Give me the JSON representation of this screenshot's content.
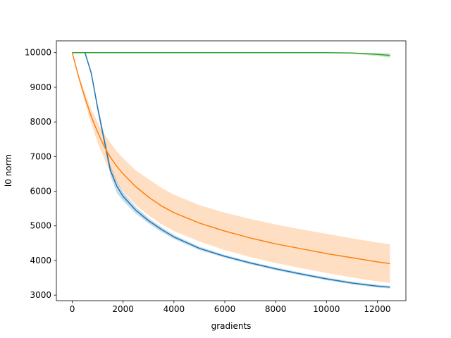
{
  "chart_data": {
    "type": "line",
    "x_label": "gradients",
    "y_label": "l0 norm",
    "x": [
      0,
      250,
      500,
      750,
      1000,
      1250,
      1500,
      1750,
      2000,
      2500,
      3000,
      3500,
      4000,
      5000,
      6000,
      7000,
      8000,
      9000,
      10000,
      11000,
      12000,
      12500
    ],
    "series": [
      {
        "color": "#1f77b4",
        "values": [
          10000,
          10000,
          10000,
          9400,
          8400,
          7500,
          6600,
          6150,
          5850,
          5450,
          5150,
          4900,
          4680,
          4350,
          4120,
          3930,
          3760,
          3610,
          3470,
          3350,
          3260,
          3230
        ],
        "lower": [
          10000,
          10000,
          10000,
          9350,
          8300,
          7350,
          6450,
          5950,
          5720,
          5350,
          5070,
          4830,
          4620,
          4300,
          4080,
          3890,
          3720,
          3570,
          3430,
          3310,
          3220,
          3190
        ],
        "upper": [
          10000,
          10000,
          10000,
          9450,
          8500,
          7650,
          6750,
          6300,
          5980,
          5550,
          5230,
          4970,
          4740,
          4400,
          4160,
          3970,
          3800,
          3650,
          3510,
          3390,
          3300,
          3270
        ]
      },
      {
        "color": "#ff7f0e",
        "values": [
          10000,
          9300,
          8700,
          8150,
          7700,
          7300,
          6980,
          6720,
          6500,
          6130,
          5830,
          5580,
          5380,
          5080,
          4850,
          4650,
          4480,
          4340,
          4200,
          4080,
          3960,
          3910
        ],
        "lower": [
          10000,
          9250,
          8550,
          7950,
          7400,
          6950,
          6550,
          6250,
          6000,
          5600,
          5300,
          5050,
          4850,
          4550,
          4300,
          4100,
          3930,
          3780,
          3640,
          3510,
          3400,
          3350
        ],
        "upper": [
          10000,
          9350,
          8850,
          8350,
          8000,
          7650,
          7400,
          7150,
          6950,
          6600,
          6350,
          6100,
          5900,
          5600,
          5380,
          5200,
          5040,
          4900,
          4770,
          4640,
          4520,
          4470
        ]
      },
      {
        "color": "#2ca02c",
        "values": [
          10000,
          10000,
          10000,
          10000,
          10000,
          10000,
          10000,
          10000,
          10000,
          10000,
          10000,
          10000,
          10000,
          10000,
          10000,
          10000,
          10000,
          10000,
          10000,
          9990,
          9950,
          9920
        ],
        "lower": [
          10000,
          10000,
          10000,
          10000,
          10000,
          10000,
          10000,
          10000,
          10000,
          10000,
          10000,
          10000,
          10000,
          10000,
          10000,
          10000,
          10000,
          10000,
          9990,
          9970,
          9900,
          9860
        ],
        "upper": [
          10000,
          10000,
          10000,
          10000,
          10000,
          10000,
          10000,
          10000,
          10000,
          10000,
          10000,
          10000,
          10000,
          10000,
          10000,
          10000,
          10000,
          10000,
          10000,
          10000,
          9990,
          9980
        ]
      }
    ],
    "xlim": [
      -625,
      13125
    ],
    "ylim": [
      2840,
      10340
    ],
    "xticks": [
      0,
      2000,
      4000,
      6000,
      8000,
      10000,
      12000
    ],
    "yticks": [
      3000,
      4000,
      5000,
      6000,
      7000,
      8000,
      9000,
      10000
    ],
    "band_opacity": 0.25
  }
}
